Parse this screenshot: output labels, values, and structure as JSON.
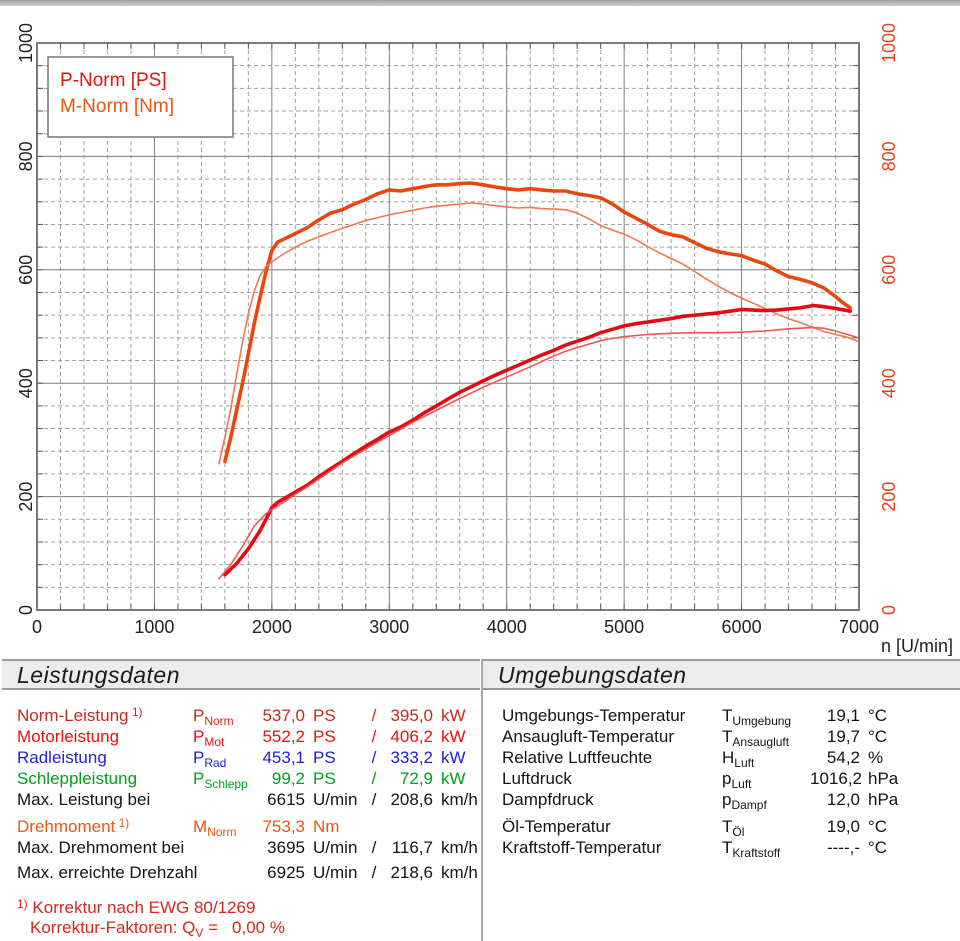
{
  "colors": {
    "norm_red": "#c8281e",
    "motor_red": "#e81111",
    "rad_blue": "#2222cc",
    "schlepp_green": "#00a01e",
    "torque_orange": "#e8580d",
    "black": "#141414",
    "footnote_red": "#d6281e",
    "axis_right_red": "#e6401a",
    "grid_major": "#7d7d7d",
    "grid_minor": "#a0a0a0",
    "border": "#5a5a5a"
  },
  "chart_data": {
    "type": "line",
    "xlabel": "n [U/min]",
    "xlim": [
      0,
      7000
    ],
    "ylim": [
      0,
      1000
    ],
    "x_major": 1000,
    "x_minor": 200,
    "y_major": 200,
    "y_minor": 40,
    "grid": true,
    "x_ticks": [
      "0",
      "1000",
      "2000",
      "3000",
      "4000",
      "5000",
      "6000",
      "7000"
    ],
    "y_ticks_left": [
      "0",
      "200",
      "400",
      "600",
      "800",
      "1000"
    ],
    "y_ticks_right": [
      "0",
      "200",
      "400",
      "600",
      "800",
      "1000"
    ],
    "legend_position": "top-left",
    "legend": [
      {
        "label": "P-Norm [PS]",
        "color": "#db1710"
      },
      {
        "label": "M-Norm [Nm]",
        "color": "#e8580d"
      }
    ],
    "series": [
      {
        "id": "m-norm",
        "unit": "Nm",
        "color": "#e8470e",
        "width": 3.6,
        "points": [
          [
            1600,
            262
          ],
          [
            1650,
            305
          ],
          [
            1700,
            352
          ],
          [
            1750,
            400
          ],
          [
            1800,
            452
          ],
          [
            1850,
            505
          ],
          [
            1900,
            552
          ],
          [
            1950,
            597
          ],
          [
            2000,
            634
          ],
          [
            2050,
            649
          ],
          [
            2100,
            654
          ],
          [
            2200,
            664
          ],
          [
            2300,
            674
          ],
          [
            2400,
            688
          ],
          [
            2500,
            700
          ],
          [
            2600,
            706
          ],
          [
            2700,
            716
          ],
          [
            2800,
            724
          ],
          [
            2900,
            734
          ],
          [
            3000,
            741
          ],
          [
            3100,
            739
          ],
          [
            3200,
            743
          ],
          [
            3300,
            747
          ],
          [
            3400,
            750
          ],
          [
            3500,
            750
          ],
          [
            3600,
            752
          ],
          [
            3695,
            753
          ],
          [
            3800,
            750
          ],
          [
            3900,
            746
          ],
          [
            4000,
            743
          ],
          [
            4100,
            741
          ],
          [
            4200,
            743
          ],
          [
            4300,
            741
          ],
          [
            4400,
            739
          ],
          [
            4500,
            739
          ],
          [
            4600,
            734
          ],
          [
            4700,
            731
          ],
          [
            4800,
            727
          ],
          [
            4900,
            716
          ],
          [
            5000,
            702
          ],
          [
            5100,
            691
          ],
          [
            5200,
            680
          ],
          [
            5300,
            668
          ],
          [
            5400,
            662
          ],
          [
            5500,
            658
          ],
          [
            5600,
            648
          ],
          [
            5700,
            638
          ],
          [
            5800,
            632
          ],
          [
            5900,
            628
          ],
          [
            6000,
            625
          ],
          [
            6100,
            617
          ],
          [
            6200,
            610
          ],
          [
            6300,
            598
          ],
          [
            6400,
            588
          ],
          [
            6500,
            583
          ],
          [
            6600,
            577
          ],
          [
            6700,
            568
          ],
          [
            6800,
            553
          ],
          [
            6850,
            544
          ],
          [
            6925,
            533
          ]
        ]
      },
      {
        "id": "m-secondary",
        "unit": "Nm",
        "color": "#f07850",
        "width": 1.6,
        "points": [
          [
            1550,
            258
          ],
          [
            1600,
            305
          ],
          [
            1650,
            355
          ],
          [
            1700,
            415
          ],
          [
            1750,
            472
          ],
          [
            1800,
            523
          ],
          [
            1850,
            562
          ],
          [
            1900,
            590
          ],
          [
            1950,
            606
          ],
          [
            2000,
            614
          ],
          [
            2100,
            628
          ],
          [
            2200,
            640
          ],
          [
            2300,
            650
          ],
          [
            2400,
            658
          ],
          [
            2500,
            666
          ],
          [
            2600,
            673
          ],
          [
            2700,
            680
          ],
          [
            2800,
            687
          ],
          [
            2900,
            692
          ],
          [
            3000,
            697
          ],
          [
            3100,
            701
          ],
          [
            3200,
            705
          ],
          [
            3300,
            709
          ],
          [
            3400,
            712
          ],
          [
            3500,
            714
          ],
          [
            3600,
            716
          ],
          [
            3700,
            718
          ],
          [
            3800,
            716
          ],
          [
            3900,
            713
          ],
          [
            4000,
            711
          ],
          [
            4100,
            709
          ],
          [
            4200,
            710
          ],
          [
            4300,
            708
          ],
          [
            4400,
            707
          ],
          [
            4500,
            706
          ],
          [
            4600,
            700
          ],
          [
            4700,
            690
          ],
          [
            4800,
            678
          ],
          [
            4900,
            670
          ],
          [
            5000,
            663
          ],
          [
            5100,
            653
          ],
          [
            5200,
            641
          ],
          [
            5300,
            630
          ],
          [
            5400,
            620
          ],
          [
            5500,
            610
          ],
          [
            5600,
            597
          ],
          [
            5700,
            584
          ],
          [
            5800,
            571
          ],
          [
            5900,
            560
          ],
          [
            6000,
            550
          ],
          [
            6100,
            541
          ],
          [
            6200,
            532
          ],
          [
            6300,
            522
          ],
          [
            6400,
            514
          ],
          [
            6500,
            507
          ],
          [
            6600,
            499
          ],
          [
            6700,
            491
          ],
          [
            6800,
            486
          ],
          [
            6900,
            481
          ],
          [
            6990,
            474
          ]
        ]
      },
      {
        "id": "p-norm",
        "unit": "PS",
        "color": "#e30b13",
        "width": 3.6,
        "points": [
          [
            1600,
            62
          ],
          [
            1700,
            82
          ],
          [
            1800,
            108
          ],
          [
            1900,
            140
          ],
          [
            1950,
            160
          ],
          [
            2000,
            181
          ],
          [
            2050,
            190
          ],
          [
            2100,
            196
          ],
          [
            2200,
            208
          ],
          [
            2300,
            220
          ],
          [
            2400,
            235
          ],
          [
            2500,
            249
          ],
          [
            2600,
            262
          ],
          [
            2700,
            276
          ],
          [
            2800,
            289
          ],
          [
            2900,
            301
          ],
          [
            3000,
            314
          ],
          [
            3100,
            323
          ],
          [
            3200,
            335
          ],
          [
            3300,
            348
          ],
          [
            3400,
            360
          ],
          [
            3500,
            372
          ],
          [
            3600,
            384
          ],
          [
            3700,
            394
          ],
          [
            3800,
            404
          ],
          [
            3900,
            414
          ],
          [
            4000,
            423
          ],
          [
            4100,
            432
          ],
          [
            4200,
            441
          ],
          [
            4300,
            450
          ],
          [
            4400,
            458
          ],
          [
            4500,
            467
          ],
          [
            4600,
            474
          ],
          [
            4700,
            481
          ],
          [
            4800,
            489
          ],
          [
            4900,
            495
          ],
          [
            5000,
            501
          ],
          [
            5100,
            505
          ],
          [
            5200,
            508
          ],
          [
            5300,
            511
          ],
          [
            5400,
            514
          ],
          [
            5500,
            518
          ],
          [
            5600,
            520
          ],
          [
            5700,
            522
          ],
          [
            5800,
            524
          ],
          [
            5900,
            527
          ],
          [
            6000,
            530
          ],
          [
            6100,
            529
          ],
          [
            6200,
            528
          ],
          [
            6300,
            529
          ],
          [
            6400,
            531
          ],
          [
            6500,
            533
          ],
          [
            6615,
            537
          ],
          [
            6700,
            535
          ],
          [
            6800,
            532
          ],
          [
            6925,
            527
          ]
        ]
      },
      {
        "id": "p-secondary",
        "unit": "PS",
        "color": "#ee5555",
        "width": 1.6,
        "points": [
          [
            1550,
            55
          ],
          [
            1650,
            80
          ],
          [
            1750,
            112
          ],
          [
            1850,
            148
          ],
          [
            1950,
            170
          ],
          [
            2000,
            177
          ],
          [
            2100,
            190
          ],
          [
            2200,
            204
          ],
          [
            2300,
            217
          ],
          [
            2400,
            231
          ],
          [
            2500,
            245
          ],
          [
            2600,
            259
          ],
          [
            2700,
            272
          ],
          [
            2800,
            284
          ],
          [
            2900,
            296
          ],
          [
            3000,
            308
          ],
          [
            3200,
            331
          ],
          [
            3400,
            352
          ],
          [
            3600,
            373
          ],
          [
            3800,
            393
          ],
          [
            4000,
            411
          ],
          [
            4200,
            429
          ],
          [
            4400,
            448
          ],
          [
            4500,
            456
          ],
          [
            4600,
            463
          ],
          [
            4700,
            469
          ],
          [
            4800,
            475
          ],
          [
            4900,
            479
          ],
          [
            5000,
            482
          ],
          [
            5200,
            486
          ],
          [
            5400,
            488
          ],
          [
            5600,
            489
          ],
          [
            5800,
            489
          ],
          [
            6000,
            490
          ],
          [
            6200,
            492
          ],
          [
            6400,
            496
          ],
          [
            6500,
            497
          ],
          [
            6600,
            498
          ],
          [
            6700,
            497
          ],
          [
            6800,
            492
          ],
          [
            6900,
            486
          ],
          [
            6990,
            480
          ]
        ]
      }
    ]
  },
  "tables": {
    "left": {
      "title": "Leistungsdaten",
      "rows": [
        {
          "label": "Norm-Leistung",
          "sup": "1)",
          "sym": "P",
          "sub": "Norm",
          "v1": "537,0",
          "u1": "PS",
          "sep": "/",
          "v2": "395,0",
          "u2": "kW",
          "color": "#c8281e"
        },
        {
          "label": "Motorleistung",
          "sym": "P",
          "sub": "Mot",
          "v1": "552,2",
          "u1": "PS",
          "sep": "/",
          "v2": "406,2",
          "u2": "kW",
          "color": "#e81111"
        },
        {
          "label": "Radleistung",
          "sym": "P",
          "sub": "Rad",
          "v1": "453,1",
          "u1": "PS",
          "sep": "/",
          "v2": "333,2",
          "u2": "kW",
          "color": "#2222cc"
        },
        {
          "label": "Schleppleistung",
          "sym": "P",
          "sub": "Schlepp",
          "v1": "99,2",
          "u1": "PS",
          "sep": "/",
          "v2": "72,9",
          "u2": "kW",
          "color": "#00a01e"
        },
        {
          "label": "Max. Leistung bei",
          "v1": "6615",
          "u1": "U/min",
          "sep": "/",
          "v2": "208,6",
          "u2": "km/h",
          "color": "#141414"
        },
        {
          "label": "Drehmoment",
          "sup": "1)",
          "sym": "M",
          "sub": "Norm",
          "v1": "753,3",
          "u1": "Nm",
          "color": "#e8580d",
          "gap": true
        },
        {
          "label": "Max. Drehmoment bei",
          "v1": "3695",
          "u1": "U/min",
          "sep": "/",
          "v2": "116,7",
          "u2": "km/h",
          "color": "#141414"
        },
        {
          "label": "Max. erreichte Drehzahl",
          "v1": "6925",
          "u1": "U/min",
          "sep": "/",
          "v2": "218,6",
          "u2": "km/h",
          "color": "#141414",
          "gap": true
        }
      ]
    },
    "right": {
      "title": "Umgebungsdaten",
      "rows": [
        {
          "label": "Umgebungs-Temperatur",
          "sym": "T",
          "sub": "Umgebung",
          "v1": "19,1",
          "u1": "°C",
          "color": "#141414"
        },
        {
          "label": "Ansaugluft-Temperatur",
          "sym": "T",
          "sub": "Ansaugluft",
          "v1": "19,7",
          "u1": "°C",
          "color": "#141414"
        },
        {
          "label": "Relative Luftfeuchte",
          "sym": "H",
          "sub": "Luft",
          "v1": "54,2",
          "u1": "%",
          "color": "#141414"
        },
        {
          "label": "Luftdruck",
          "sym": "p",
          "sub": "Luft",
          "v1": "1016,2",
          "u1": "hPa",
          "color": "#141414"
        },
        {
          "label": "Dampfdruck",
          "sym": "p",
          "sub": "Dampf",
          "v1": "12,0",
          "u1": "hPa",
          "color": "#141414"
        },
        {
          "label": "Öl-Temperatur",
          "sym": "T",
          "sub": "Öl",
          "v1": "19,0",
          "u1": "°C",
          "color": "#141414",
          "gap": true
        },
        {
          "label": "Kraftstoff-Temperatur",
          "sym": "T",
          "sub": "Kraftstoff",
          "v1": "----,-",
          "u1": "°C",
          "color": "#141414"
        }
      ]
    }
  },
  "footnotes": {
    "line1_sup": "1)",
    "line1_text": "Korrektur nach EWG 80/1269",
    "line2_prefix": "Korrektur-Faktoren: Q",
    "line2_sub": "V",
    "line2_eq": "=",
    "line2_value": "0,00 %"
  }
}
